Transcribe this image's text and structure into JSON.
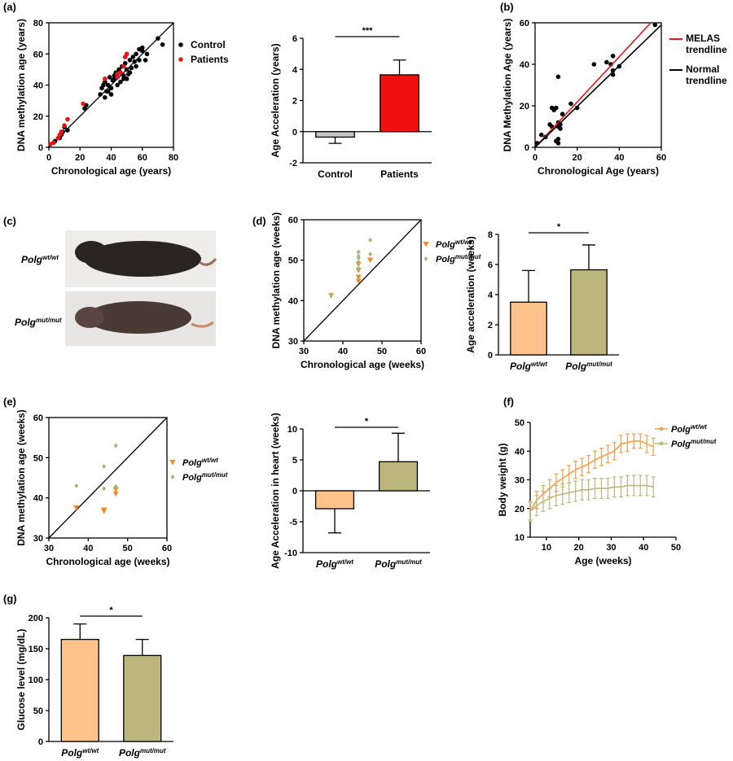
{
  "chart_data": [
    {
      "type": "scatter",
      "panel": "(a)",
      "xlabel": "Chronological age (years)",
      "ylabel": "DNA methylation age (years)",
      "xlim": [
        0,
        80
      ],
      "ylim": [
        0,
        80
      ],
      "xticks": [
        0,
        20,
        40,
        60,
        80
      ],
      "yticks": [
        0,
        20,
        40,
        60,
        80
      ],
      "diagonal": true,
      "series": [
        {
          "name": "Control",
          "color": "#000000",
          "marker": "circle",
          "x": [
            4,
            7,
            8,
            9,
            10,
            12,
            23,
            24,
            33,
            35,
            36,
            37,
            38,
            39,
            40,
            41,
            42,
            43,
            44,
            45,
            46,
            47,
            48,
            49,
            50,
            51,
            52,
            53,
            54,
            55,
            56,
            58,
            60,
            62,
            63,
            70,
            73,
            36,
            38,
            40,
            44,
            46,
            50,
            52,
            56,
            58,
            60,
            34,
            42,
            48
          ],
          "values": [
            4,
            6,
            8,
            10,
            13,
            11,
            25,
            27,
            34,
            40,
            42,
            36,
            40,
            45,
            38,
            43,
            44,
            48,
            45,
            50,
            48,
            52,
            46,
            54,
            50,
            47,
            56,
            51,
            58,
            55,
            60,
            63,
            62,
            56,
            60,
            70,
            66,
            32,
            36,
            34,
            40,
            42,
            44,
            48,
            52,
            56,
            64,
            38,
            46,
            44
          ]
        },
        {
          "name": "Patients",
          "color": "#e8141b",
          "marker": "circle",
          "x": [
            1,
            3,
            6,
            7,
            8,
            10,
            12,
            22,
            36,
            44,
            46,
            48,
            49,
            50,
            44
          ],
          "values": [
            2,
            3,
            6,
            8,
            10,
            14,
            18,
            28,
            44,
            47,
            48,
            52,
            58,
            60,
            45
          ]
        }
      ]
    },
    {
      "type": "bar",
      "ylabel": "Age Acceleration (years)",
      "ylim": [
        -2,
        6
      ],
      "yticks": [
        -2,
        0,
        2,
        4,
        6
      ],
      "categories": [
        "Control",
        "Patients"
      ],
      "values": [
        -0.35,
        3.65
      ],
      "errors": [
        0.4,
        0.95
      ],
      "colors": [
        "#c8c8c8",
        "#f01010"
      ],
      "annotation": "***"
    },
    {
      "type": "scatter",
      "panel": "(b)",
      "xlabel": "Chronological Age (years)",
      "ylabel": "DNA Methylation Age (years)",
      "xlim": [
        0,
        60
      ],
      "ylim": [
        0,
        60
      ],
      "xticks": [
        0,
        20,
        40,
        60
      ],
      "yticks": [
        0,
        20,
        40,
        60
      ],
      "series": [
        {
          "color": "#000000",
          "marker": "circle",
          "x": [
            1,
            3,
            5,
            7,
            8,
            8,
            9,
            10,
            10,
            11,
            11,
            11,
            11,
            11,
            12,
            12,
            13,
            17,
            20,
            28,
            34,
            36,
            37,
            37,
            37,
            40,
            57
          ],
          "values": [
            2,
            6,
            5,
            11,
            10,
            19,
            18,
            19,
            3,
            2,
            4,
            10,
            12,
            34,
            11,
            9,
            16,
            21,
            19,
            40,
            41,
            40,
            44,
            37,
            35,
            39,
            59
          ]
        },
        {
          "name": "MELAS trendline",
          "color": "#e8141b",
          "mode": "line",
          "x": [
            0,
            55
          ],
          "values": [
            0,
            60
          ]
        },
        {
          "name": "Normal trendline",
          "color": "#000000",
          "mode": "line",
          "x": [
            0,
            60
          ],
          "values": [
            0,
            59
          ]
        }
      ]
    },
    {
      "type": "photo",
      "panel": "(c)",
      "labels": [
        {
          "text": "Polg",
          "sup": "wt/wt"
        },
        {
          "text": "Polg",
          "sup": "mut/mut"
        }
      ]
    },
    {
      "type": "scatter",
      "panel": "(d)",
      "xlabel": "Chronological age (weeks)",
      "ylabel": "DNA methylation age (weeks)",
      "xlim": [
        30,
        60
      ],
      "ylim": [
        30,
        60
      ],
      "xticks": [
        30,
        40,
        50,
        60
      ],
      "yticks": [
        30,
        40,
        50,
        60
      ],
      "diagonal": true,
      "series": [
        {
          "name": "Polg",
          "name_sup": "wt/wt",
          "color": "#f08a24",
          "marker": "triangle",
          "x": [
            37,
            44,
            44,
            44,
            47,
            44
          ],
          "values": [
            41.2,
            44.8,
            45.8,
            47.5,
            50,
            49
          ]
        },
        {
          "name": "Polg",
          "name_sup": "mut/mut",
          "color": "#a8b67a",
          "marker": "diamond",
          "x": [
            37,
            44,
            44,
            44,
            44,
            44,
            47,
            47
          ],
          "values": [
            41.5,
            48,
            49.5,
            50.5,
            51,
            52,
            51.5,
            55
          ]
        }
      ]
    },
    {
      "type": "bar",
      "ylabel": "Age acceleration (weeks)",
      "ylim": [
        0,
        8
      ],
      "yticks": [
        0,
        2,
        4,
        6,
        8
      ],
      "categories": [
        "Polg",
        "Polg"
      ],
      "category_sups": [
        "wt/wt",
        "mut/mut"
      ],
      "values": [
        3.5,
        5.65
      ],
      "errors": [
        2.1,
        1.65
      ],
      "colors": [
        "#ffc28a",
        "#bdb57e"
      ],
      "annotation": "*"
    },
    {
      "type": "scatter",
      "panel": "(e)",
      "xlabel": "Chronological age (weeks)",
      "ylabel": "DNA methylation age (weeks)",
      "xlim": [
        30,
        60
      ],
      "ylim": [
        30,
        60
      ],
      "xticks": [
        30,
        40,
        50,
        60
      ],
      "yticks": [
        30,
        40,
        50,
        60
      ],
      "diagonal": true,
      "series": [
        {
          "name": "Polg",
          "name_sup": "wt/wt",
          "color": "#f08a24",
          "marker": "triangle",
          "x": [
            37,
            44,
            44,
            47,
            47
          ],
          "values": [
            37.5,
            37,
            36.7,
            41,
            42
          ]
        },
        {
          "name": "Polg",
          "name_sup": "mut/mut",
          "color": "#a8b67a",
          "marker": "diamond",
          "x": [
            37,
            44,
            44,
            47,
            47
          ],
          "values": [
            43,
            42.3,
            47.8,
            53,
            42.8
          ]
        }
      ]
    },
    {
      "type": "bar",
      "ylabel": "Age Acceleration in heart (weeks)",
      "ylim": [
        -10,
        10
      ],
      "yticks": [
        -10,
        -5,
        0,
        5,
        10
      ],
      "categories": [
        "Polg",
        "Polg"
      ],
      "category_sups": [
        "wt/wt",
        "mut/mut"
      ],
      "values": [
        -2.9,
        4.7
      ],
      "errors": [
        3.9,
        4.6
      ],
      "colors": [
        "#ffc28a",
        "#bdb57e"
      ],
      "annotation": "*"
    },
    {
      "type": "line",
      "panel": "(f)",
      "xlabel": "Age (weeks)",
      "ylabel": "Body weight (g)",
      "xlim": [
        5,
        50
      ],
      "ylim": [
        10,
        50
      ],
      "xticks": [
        10,
        20,
        30,
        40,
        50
      ],
      "yticks": [
        10,
        20,
        30,
        40,
        50
      ],
      "series": [
        {
          "name": "Polg",
          "name_sup": "wt/wt",
          "color": "#f5a04a",
          "x": [
            5,
            7,
            9,
            11,
            13,
            15,
            17,
            19,
            21,
            23,
            25,
            27,
            29,
            31,
            33,
            35,
            37,
            39,
            41,
            43
          ],
          "values": [
            19,
            23,
            25,
            27,
            29,
            30.5,
            32,
            33.5,
            34.5,
            35.5,
            37,
            38,
            39,
            40,
            42.5,
            43,
            43.5,
            43.5,
            42.5,
            41.5
          ],
          "errors": [
            3,
            3,
            3,
            3,
            3,
            3,
            3,
            3,
            3,
            3,
            3,
            3,
            3,
            3,
            3,
            3,
            2.5,
            2.5,
            3,
            3
          ]
        },
        {
          "name": "Polg",
          "name_sup": "mut/mut",
          "color": "#bcb883",
          "x": [
            5,
            7,
            9,
            11,
            13,
            15,
            17,
            19,
            21,
            23,
            25,
            27,
            29,
            31,
            33,
            35,
            37,
            39,
            41,
            43
          ],
          "values": [
            19,
            21,
            22.5,
            23.5,
            24.5,
            25,
            25.5,
            26,
            26.5,
            26.5,
            27,
            27,
            27,
            27.5,
            27.5,
            28,
            28,
            28,
            28,
            27.5
          ],
          "errors": [
            3.5,
            3.5,
            3.5,
            3.5,
            3.5,
            3.5,
            3.5,
            3.5,
            3.5,
            3.5,
            3.5,
            3.5,
            3.5,
            3.5,
            3.5,
            3.5,
            3.5,
            3.5,
            3.5,
            3.5
          ]
        }
      ]
    },
    {
      "type": "bar",
      "panel": "(g)",
      "ylabel": "Glucose level (mg/dL)",
      "ylim": [
        0,
        200
      ],
      "yticks": [
        0,
        50,
        100,
        150,
        200
      ],
      "categories": [
        "Polg",
        "Polg"
      ],
      "category_sups": [
        "wt/wt",
        "mut/mut"
      ],
      "values": [
        165,
        139
      ],
      "errors": [
        25,
        26
      ],
      "colors": [
        "#ffc28a",
        "#bdb57e"
      ],
      "annotation": "*"
    }
  ]
}
